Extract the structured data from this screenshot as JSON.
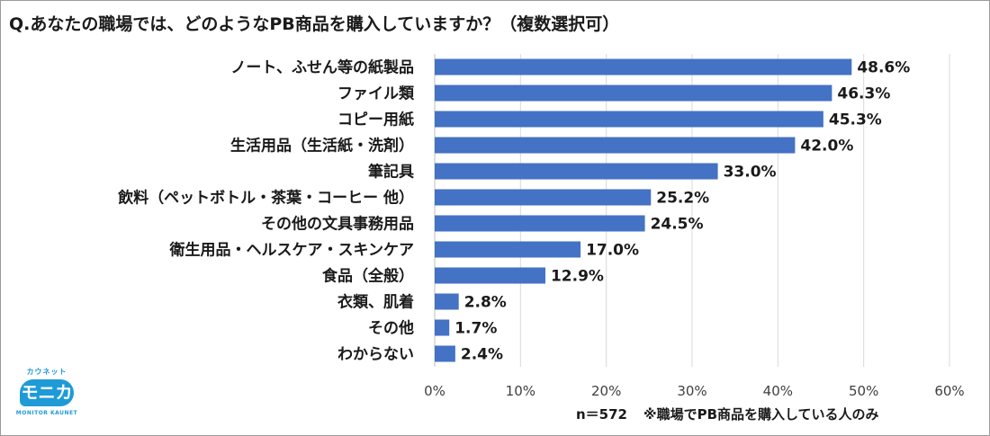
{
  "title": "Q.あなたの職場では、どのようなPB商品を購入していますか？（複数選択可）",
  "footnote": {
    "sample": "n＝572",
    "note": "※職場でPB商品を購入している人のみ"
  },
  "logo": {
    "top_text": "カウネット",
    "main_text": "モニカ",
    "bottom_text": "MONITOR KAUNET"
  },
  "colors": {
    "bar": "#4472c4",
    "grid": "#d9d9d9",
    "text": "#1a1a1a"
  },
  "chart_data": {
    "type": "bar",
    "orientation": "horizontal",
    "categories": [
      "ノート、ふせん等の紙製品",
      "ファイル類",
      "コピー用紙",
      "生活用品（生活紙・洗剤）",
      "筆記具",
      "飲料（ペットボトル・茶葉・コーヒー 他）",
      "その他の文具事務用品",
      "衛生用品・ヘルスケア・スキンケア",
      "食品（全般）",
      "衣類、肌着",
      "その他",
      "わからない"
    ],
    "values": [
      48.6,
      46.3,
      45.3,
      42.0,
      33.0,
      25.2,
      24.5,
      17.0,
      12.9,
      2.8,
      1.7,
      2.4
    ],
    "value_labels": [
      "48.6%",
      "46.3%",
      "45.3%",
      "42.0%",
      "33.0%",
      "25.2%",
      "24.5%",
      "17.0%",
      "12.9%",
      "2.8%",
      "1.7%",
      "2.4%"
    ],
    "x_ticks": [
      "0%",
      "10%",
      "20%",
      "30%",
      "40%",
      "50%",
      "60%"
    ],
    "xlim": [
      0,
      60
    ],
    "grid": true
  }
}
